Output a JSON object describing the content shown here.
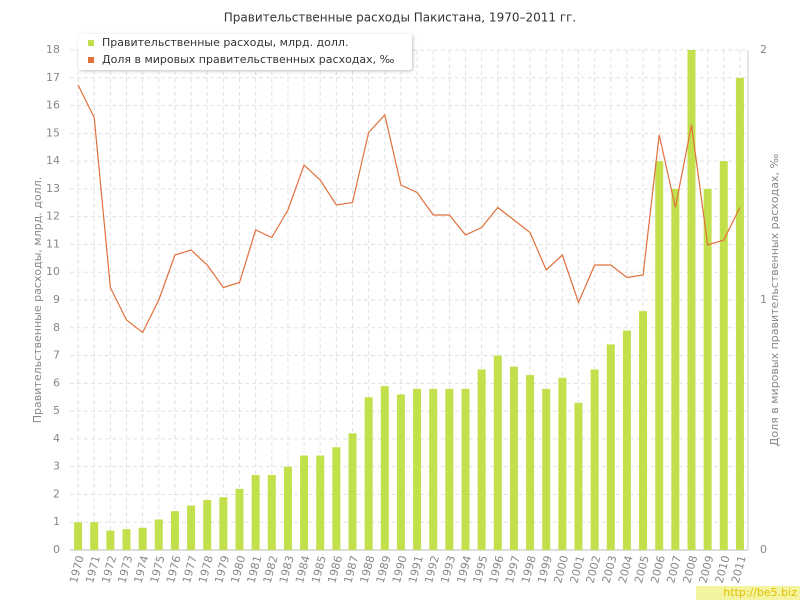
{
  "chart_data": {
    "type": "combo",
    "title": "Правительственные расходы Пакистана, 1970–2011 гг.",
    "y_label": "Правительственные расходы, млрд. долл.",
    "y2_label": "Доля в мировых правительственных расходах, ‰",
    "watermark": "http://be5.biz",
    "categories": [
      "1970",
      "1971",
      "1972",
      "1973",
      "1974",
      "1975",
      "1976",
      "1977",
      "1978",
      "1979",
      "1980",
      "1981",
      "1982",
      "1983",
      "1984",
      "1985",
      "1986",
      "1987",
      "1988",
      "1989",
      "1990",
      "1991",
      "1992",
      "1993",
      "1994",
      "1995",
      "1996",
      "1997",
      "1998",
      "1999",
      "2000",
      "2001",
      "2002",
      "2003",
      "2004",
      "2005",
      "2006",
      "2007",
      "2008",
      "2009",
      "2010",
      "2011"
    ],
    "series": [
      {
        "name": "Правительственные расходы, млрд. долл.",
        "type": "bar",
        "color": "#c2e04c",
        "values": [
          1.0,
          1.0,
          0.7,
          0.75,
          0.8,
          1.1,
          1.4,
          1.6,
          1.8,
          1.9,
          2.2,
          2.7,
          2.7,
          3.0,
          3.4,
          3.4,
          3.7,
          4.2,
          5.5,
          5.9,
          5.6,
          5.8,
          5.8,
          5.8,
          5.8,
          6.5,
          7.0,
          6.6,
          6.3,
          5.8,
          6.2,
          5.3,
          6.5,
          7.4,
          7.9,
          8.6,
          14.0,
          13.0,
          18.0,
          13.0,
          14.0,
          17.0
        ]
      },
      {
        "name": "Доля в мировых правительственных расходах, ‰",
        "type": "line",
        "axis": "y2",
        "color": "#e0703c",
        "values": [
          1.86,
          1.73,
          1.05,
          0.92,
          0.87,
          1.0,
          1.18,
          1.2,
          1.14,
          1.05,
          1.07,
          1.28,
          1.25,
          1.36,
          1.54,
          1.48,
          1.38,
          1.39,
          1.67,
          1.74,
          1.46,
          1.43,
          1.34,
          1.34,
          1.26,
          1.29,
          1.37,
          1.32,
          1.27,
          1.12,
          1.18,
          0.99,
          1.14,
          1.14,
          1.09,
          1.1,
          1.66,
          1.37,
          1.7,
          1.22,
          1.24,
          1.37
        ]
      }
    ],
    "ylim": [
      0,
      18
    ],
    "yticks": [
      0,
      1,
      2,
      3,
      4,
      5,
      6,
      7,
      8,
      9,
      10,
      11,
      12,
      13,
      14,
      15,
      16,
      17,
      18
    ],
    "y2lim": [
      0,
      2
    ],
    "y2ticks": [
      0,
      1,
      2
    ],
    "grid": true,
    "legend": "top-left"
  }
}
